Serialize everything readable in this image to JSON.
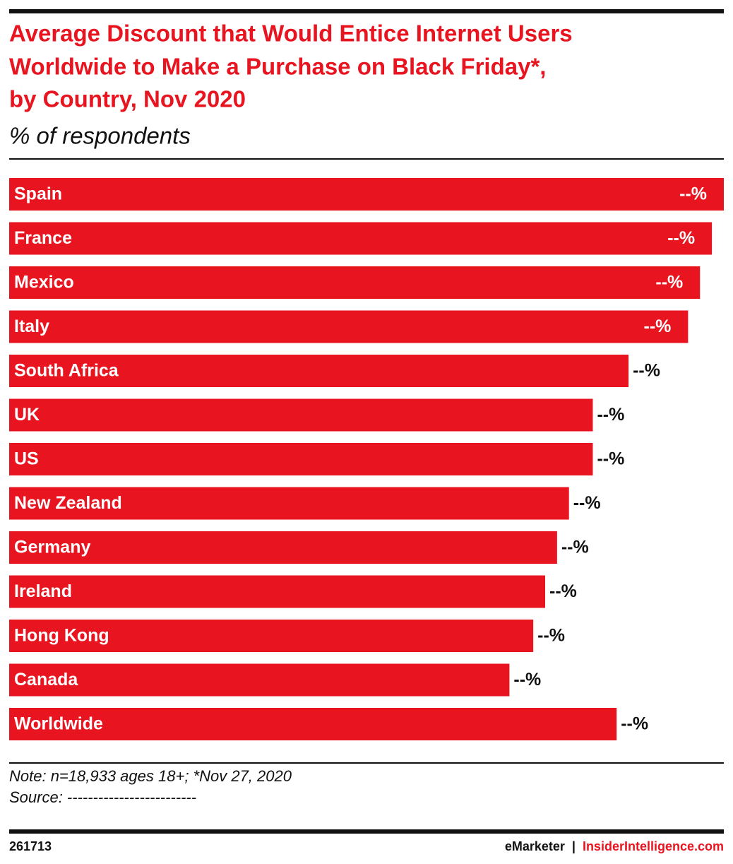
{
  "chart_data": {
    "type": "bar",
    "orientation": "horizontal",
    "title": [
      "Average Discount that Would Entice Internet Users",
      "Worldwide to Make a Purchase on Black Friday*,",
      "by Country, Nov 2020"
    ],
    "subtitle": "% of respondents",
    "categories": [
      "Spain",
      "France",
      "Mexico",
      "Italy",
      "South Africa",
      "UK",
      "US",
      "New Zealand",
      "Germany",
      "Ireland",
      "Hong Kong",
      "Canada",
      "Worldwide"
    ],
    "values": [
      60,
      59,
      58,
      57,
      52,
      49,
      49,
      47,
      46,
      45,
      44,
      42,
      51
    ],
    "value_labels": [
      "--%",
      "--%",
      "--%",
      "--%",
      "--%",
      "--%",
      "--%",
      "--%",
      "--%",
      "--%",
      "--%",
      "--%",
      "--%"
    ],
    "color": "#e8141f",
    "note": "Note: n=18,933 ages 18+; *Nov 27, 2020",
    "source": "Source: -------------------------"
  },
  "footer": {
    "id": "261713",
    "brand": "eMarketer",
    "separator": "|",
    "site": "InsiderIntelligence.com"
  }
}
